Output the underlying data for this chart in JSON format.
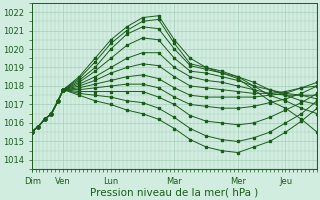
{
  "bg_color": "#d0ede0",
  "grid_color": "#a8ccb8",
  "line_color": "#1a5c1a",
  "marker_color": "#1a5c1a",
  "ylabel_values": [
    1014,
    1015,
    1016,
    1017,
    1018,
    1019,
    1020,
    1021,
    1022
  ],
  "ylim": [
    1013.5,
    1022.5
  ],
  "xlabel": "Pression niveau de la mer( hPa )",
  "xlabel_fontsize": 7.5,
  "day_labels": [
    "Dim",
    "Ven",
    "Lun",
    "Mar",
    "Mer",
    "Jeu"
  ],
  "day_positions": [
    0.5,
    24,
    60,
    108,
    156,
    192
  ],
  "xlim": [
    0,
    216
  ],
  "pivot_x": 24,
  "pivot_y": 1017.8,
  "series": [
    {
      "past": [
        [
          0,
          1015.5
        ],
        [
          5,
          1015.8
        ],
        [
          10,
          1016.2
        ],
        [
          15,
          1016.5
        ],
        [
          20,
          1017.2
        ],
        [
          24,
          1017.8
        ]
      ],
      "future": [
        [
          24,
          1017.8
        ],
        [
          36,
          1018.5
        ],
        [
          48,
          1019.5
        ],
        [
          60,
          1020.5
        ],
        [
          72,
          1021.2
        ],
        [
          84,
          1021.7
        ],
        [
          96,
          1021.8
        ],
        [
          108,
          1020.5
        ],
        [
          120,
          1019.5
        ],
        [
          132,
          1019.0
        ],
        [
          144,
          1018.7
        ],
        [
          156,
          1018.4
        ],
        [
          168,
          1017.8
        ],
        [
          180,
          1017.2
        ],
        [
          192,
          1016.8
        ],
        [
          204,
          1016.2
        ],
        [
          216,
          1015.5
        ]
      ]
    },
    {
      "past": [
        [
          0,
          1015.5
        ],
        [
          5,
          1015.8
        ],
        [
          10,
          1016.2
        ],
        [
          15,
          1016.5
        ],
        [
          20,
          1017.2
        ],
        [
          24,
          1017.8
        ]
      ],
      "future": [
        [
          24,
          1017.8
        ],
        [
          36,
          1018.4
        ],
        [
          48,
          1019.3
        ],
        [
          60,
          1020.3
        ],
        [
          72,
          1021.0
        ],
        [
          84,
          1021.5
        ],
        [
          96,
          1021.6
        ],
        [
          108,
          1020.3
        ],
        [
          120,
          1019.2
        ],
        [
          132,
          1019.0
        ],
        [
          144,
          1018.8
        ],
        [
          156,
          1018.5
        ],
        [
          168,
          1018.0
        ],
        [
          180,
          1017.5
        ],
        [
          192,
          1017.2
        ],
        [
          204,
          1016.8
        ],
        [
          216,
          1016.5
        ]
      ]
    },
    {
      "past": [
        [
          0,
          1015.5
        ],
        [
          5,
          1015.8
        ],
        [
          10,
          1016.2
        ],
        [
          15,
          1016.5
        ],
        [
          20,
          1017.2
        ],
        [
          24,
          1017.8
        ]
      ],
      "future": [
        [
          24,
          1017.8
        ],
        [
          36,
          1018.3
        ],
        [
          48,
          1019.0
        ],
        [
          60,
          1020.0
        ],
        [
          72,
          1020.8
        ],
        [
          84,
          1021.2
        ],
        [
          96,
          1021.1
        ],
        [
          108,
          1020.0
        ],
        [
          120,
          1019.1
        ],
        [
          132,
          1018.9
        ],
        [
          144,
          1018.7
        ],
        [
          156,
          1018.5
        ],
        [
          168,
          1018.2
        ],
        [
          180,
          1017.8
        ],
        [
          192,
          1017.5
        ],
        [
          204,
          1017.2
        ],
        [
          216,
          1017.0
        ]
      ]
    },
    {
      "past": [
        [
          0,
          1015.5
        ],
        [
          5,
          1015.8
        ],
        [
          10,
          1016.2
        ],
        [
          15,
          1016.5
        ],
        [
          20,
          1017.2
        ],
        [
          24,
          1017.8
        ]
      ],
      "future": [
        [
          24,
          1017.8
        ],
        [
          36,
          1018.2
        ],
        [
          48,
          1018.8
        ],
        [
          60,
          1019.5
        ],
        [
          72,
          1020.2
        ],
        [
          84,
          1020.6
        ],
        [
          96,
          1020.5
        ],
        [
          108,
          1019.5
        ],
        [
          120,
          1018.8
        ],
        [
          132,
          1018.7
        ],
        [
          144,
          1018.5
        ],
        [
          156,
          1018.3
        ],
        [
          168,
          1018.0
        ],
        [
          180,
          1017.8
        ],
        [
          192,
          1017.6
        ],
        [
          204,
          1017.5
        ],
        [
          216,
          1017.3
        ]
      ]
    },
    {
      "past": [
        [
          0,
          1015.5
        ],
        [
          5,
          1015.8
        ],
        [
          10,
          1016.2
        ],
        [
          15,
          1016.5
        ],
        [
          20,
          1017.2
        ],
        [
          24,
          1017.8
        ]
      ],
      "future": [
        [
          24,
          1017.8
        ],
        [
          36,
          1018.1
        ],
        [
          48,
          1018.5
        ],
        [
          60,
          1019.0
        ],
        [
          72,
          1019.5
        ],
        [
          84,
          1019.8
        ],
        [
          96,
          1019.8
        ],
        [
          108,
          1019.0
        ],
        [
          120,
          1018.5
        ],
        [
          132,
          1018.3
        ],
        [
          144,
          1018.2
        ],
        [
          156,
          1018.0
        ],
        [
          168,
          1017.8
        ],
        [
          180,
          1017.6
        ],
        [
          192,
          1017.5
        ],
        [
          204,
          1017.5
        ],
        [
          216,
          1017.5
        ]
      ]
    },
    {
      "past": [
        [
          0,
          1015.5
        ],
        [
          5,
          1015.8
        ],
        [
          10,
          1016.2
        ],
        [
          15,
          1016.5
        ],
        [
          20,
          1017.2
        ],
        [
          24,
          1017.8
        ]
      ],
      "future": [
        [
          24,
          1017.8
        ],
        [
          36,
          1018.0
        ],
        [
          48,
          1018.3
        ],
        [
          60,
          1018.7
        ],
        [
          72,
          1019.0
        ],
        [
          84,
          1019.2
        ],
        [
          96,
          1019.1
        ],
        [
          108,
          1018.5
        ],
        [
          120,
          1018.0
        ],
        [
          132,
          1017.9
        ],
        [
          144,
          1017.8
        ],
        [
          156,
          1017.7
        ],
        [
          168,
          1017.6
        ],
        [
          180,
          1017.6
        ],
        [
          192,
          1017.7
        ],
        [
          204,
          1017.9
        ],
        [
          216,
          1018.0
        ]
      ]
    },
    {
      "past": [
        [
          0,
          1015.5
        ],
        [
          5,
          1015.8
        ],
        [
          10,
          1016.2
        ],
        [
          15,
          1016.5
        ],
        [
          20,
          1017.2
        ],
        [
          24,
          1017.8
        ]
      ],
      "future": [
        [
          24,
          1017.8
        ],
        [
          36,
          1017.9
        ],
        [
          48,
          1018.1
        ],
        [
          60,
          1018.3
        ],
        [
          72,
          1018.5
        ],
        [
          84,
          1018.6
        ],
        [
          96,
          1018.4
        ],
        [
          108,
          1017.9
        ],
        [
          120,
          1017.5
        ],
        [
          132,
          1017.4
        ],
        [
          144,
          1017.4
        ],
        [
          156,
          1017.4
        ],
        [
          168,
          1017.4
        ],
        [
          180,
          1017.5
        ],
        [
          192,
          1017.6
        ],
        [
          204,
          1017.9
        ],
        [
          216,
          1018.2
        ]
      ]
    },
    {
      "past": [
        [
          0,
          1015.5
        ],
        [
          5,
          1015.8
        ],
        [
          10,
          1016.2
        ],
        [
          15,
          1016.5
        ],
        [
          20,
          1017.2
        ],
        [
          24,
          1017.8
        ]
      ],
      "future": [
        [
          24,
          1017.8
        ],
        [
          36,
          1017.8
        ],
        [
          48,
          1017.9
        ],
        [
          60,
          1018.0
        ],
        [
          72,
          1018.1
        ],
        [
          84,
          1018.1
        ],
        [
          96,
          1017.9
        ],
        [
          108,
          1017.4
        ],
        [
          120,
          1017.0
        ],
        [
          132,
          1016.9
        ],
        [
          144,
          1016.8
        ],
        [
          156,
          1016.8
        ],
        [
          168,
          1016.9
        ],
        [
          180,
          1017.1
        ],
        [
          192,
          1017.3
        ],
        [
          204,
          1017.6
        ],
        [
          216,
          1018.0
        ]
      ]
    },
    {
      "past": [
        [
          0,
          1015.5
        ],
        [
          5,
          1015.8
        ],
        [
          10,
          1016.2
        ],
        [
          15,
          1016.5
        ],
        [
          20,
          1017.2
        ],
        [
          24,
          1017.8
        ]
      ],
      "future": [
        [
          24,
          1017.8
        ],
        [
          36,
          1017.7
        ],
        [
          48,
          1017.7
        ],
        [
          60,
          1017.7
        ],
        [
          72,
          1017.7
        ],
        [
          84,
          1017.7
        ],
        [
          96,
          1017.4
        ],
        [
          108,
          1017.0
        ],
        [
          120,
          1016.4
        ],
        [
          132,
          1016.1
        ],
        [
          144,
          1016.0
        ],
        [
          156,
          1015.9
        ],
        [
          168,
          1016.0
        ],
        [
          180,
          1016.3
        ],
        [
          192,
          1016.7
        ],
        [
          204,
          1017.1
        ],
        [
          216,
          1017.6
        ]
      ]
    },
    {
      "past": [
        [
          0,
          1015.5
        ],
        [
          5,
          1015.8
        ],
        [
          10,
          1016.2
        ],
        [
          15,
          1016.5
        ],
        [
          20,
          1017.2
        ],
        [
          24,
          1017.8
        ]
      ],
      "future": [
        [
          24,
          1017.8
        ],
        [
          36,
          1017.6
        ],
        [
          48,
          1017.5
        ],
        [
          60,
          1017.4
        ],
        [
          72,
          1017.2
        ],
        [
          84,
          1017.1
        ],
        [
          96,
          1016.8
        ],
        [
          108,
          1016.3
        ],
        [
          120,
          1015.7
        ],
        [
          132,
          1015.3
        ],
        [
          144,
          1015.1
        ],
        [
          156,
          1015.0
        ],
        [
          168,
          1015.2
        ],
        [
          180,
          1015.5
        ],
        [
          192,
          1016.0
        ],
        [
          204,
          1016.5
        ],
        [
          216,
          1017.2
        ]
      ]
    },
    {
      "past": [
        [
          0,
          1015.5
        ],
        [
          5,
          1015.8
        ],
        [
          10,
          1016.2
        ],
        [
          15,
          1016.5
        ],
        [
          20,
          1017.2
        ],
        [
          24,
          1017.8
        ]
      ],
      "future": [
        [
          24,
          1017.8
        ],
        [
          36,
          1017.5
        ],
        [
          48,
          1017.2
        ],
        [
          60,
          1017.0
        ],
        [
          72,
          1016.7
        ],
        [
          84,
          1016.5
        ],
        [
          96,
          1016.2
        ],
        [
          108,
          1015.7
        ],
        [
          120,
          1015.1
        ],
        [
          132,
          1014.7
        ],
        [
          144,
          1014.5
        ],
        [
          156,
          1014.4
        ],
        [
          168,
          1014.7
        ],
        [
          180,
          1015.0
        ],
        [
          192,
          1015.5
        ],
        [
          204,
          1016.1
        ],
        [
          216,
          1016.8
        ]
      ]
    }
  ],
  "obs_series": {
    "x": [
      0,
      3,
      6,
      9,
      12,
      15,
      18,
      21,
      24
    ],
    "y": [
      1015.5,
      1015.7,
      1016.0,
      1016.4,
      1016.8,
      1017.1,
      1017.4,
      1017.6,
      1017.8
    ]
  },
  "upper_series": {
    "x": [
      24,
      30,
      36,
      42,
      48,
      54,
      60,
      66,
      72,
      78,
      84,
      90,
      96,
      100,
      108,
      114,
      120
    ],
    "y": [
      1017.8,
      1018.5,
      1019.5,
      1020.2,
      1020.8,
      1021.3,
      1021.5,
      1021.7,
      1021.8,
      1021.6,
      1021.2,
      1021.0,
      1020.5,
      1020.3,
      1020.1,
      1019.8,
      1019.5
    ]
  }
}
